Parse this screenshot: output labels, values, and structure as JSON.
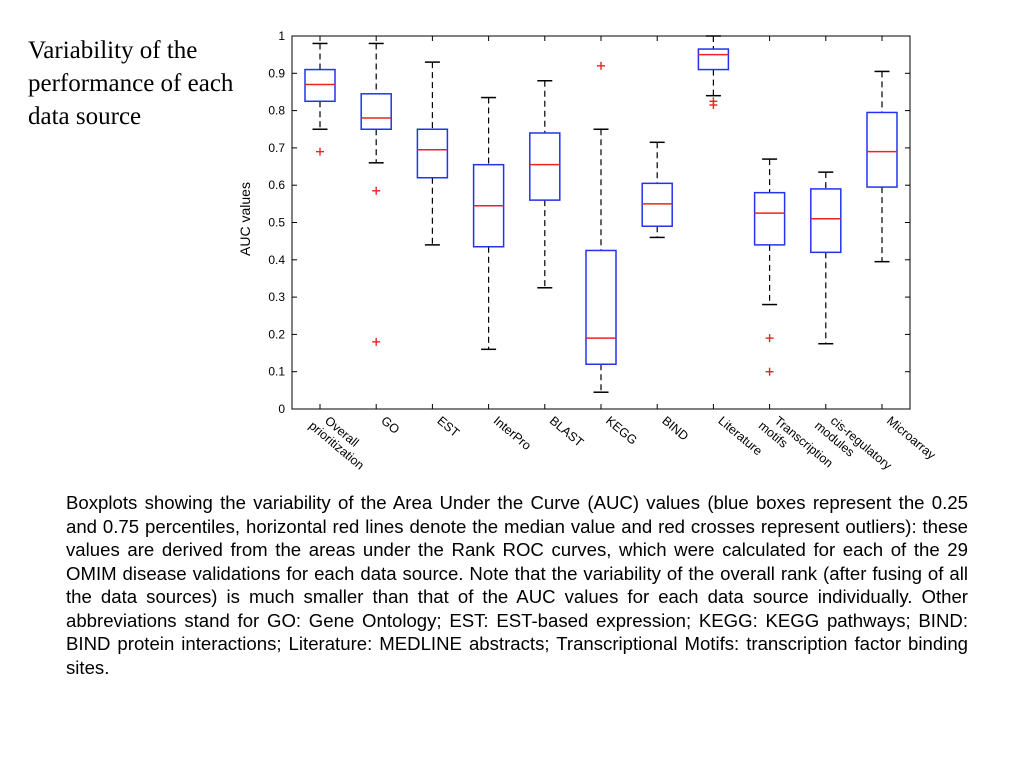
{
  "slide": {
    "title": "Variability of the performance of each data source"
  },
  "caption": "Boxplots showing the variability of the Area Under the Curve (AUC) values (blue boxes represent the 0.25 and 0.75 percentiles, horizontal red lines denote the median value and red crosses represent outliers): these values are derived from the areas under the Rank ROC curves, which were calculated for each of the 29 OMIM disease validations for each data source. Note that the variability of the overall rank (after fusing of all the data sources) is much smaller than that of the AUC values for each data source individually. Other abbreviations stand for GO: Gene Ontology; EST: EST-based expression; KEGG: KEGG pathways; BIND: BIND protein interactions; Literature: MEDLINE abstracts; Transcriptional Motifs: transcription factor binding sites.",
  "chart_data": {
    "type": "boxplot",
    "ylabel": "AUC values",
    "xlabel": "",
    "ylim": [
      0,
      1
    ],
    "yticks": [
      "0",
      "0.1",
      "0.2",
      "0.3",
      "0.4",
      "0.5",
      "0.6",
      "0.7",
      "0.8",
      "0.9",
      "1"
    ],
    "categories": [
      [
        "Overall",
        "prioritization"
      ],
      [
        "GO"
      ],
      [
        "EST"
      ],
      [
        "InterPro"
      ],
      [
        "BLAST"
      ],
      [
        "KEGG"
      ],
      [
        "BIND"
      ],
      [
        "Literature"
      ],
      [
        "Transcription",
        "motifs"
      ],
      [
        "cis-regulatory",
        "modules"
      ],
      [
        "Microarray"
      ]
    ],
    "boxes": [
      {
        "whisker_low": 0.75,
        "q1": 0.825,
        "median": 0.87,
        "q3": 0.91,
        "whisker_high": 0.98,
        "outliers": [
          0.69
        ]
      },
      {
        "whisker_low": 0.66,
        "q1": 0.75,
        "median": 0.78,
        "q3": 0.845,
        "whisker_high": 0.98,
        "outliers": [
          0.585,
          0.18
        ]
      },
      {
        "whisker_low": 0.44,
        "q1": 0.62,
        "median": 0.695,
        "q3": 0.75,
        "whisker_high": 0.93,
        "outliers": []
      },
      {
        "whisker_low": 0.16,
        "q1": 0.435,
        "median": 0.545,
        "q3": 0.655,
        "whisker_high": 0.835,
        "outliers": []
      },
      {
        "whisker_low": 0.325,
        "q1": 0.56,
        "median": 0.655,
        "q3": 0.74,
        "whisker_high": 0.88,
        "outliers": []
      },
      {
        "whisker_low": 0.045,
        "q1": 0.12,
        "median": 0.19,
        "q3": 0.425,
        "whisker_high": 0.75,
        "outliers": [
          0.92
        ]
      },
      {
        "whisker_low": 0.46,
        "q1": 0.49,
        "median": 0.55,
        "q3": 0.605,
        "whisker_high": 0.715,
        "outliers": []
      },
      {
        "whisker_low": 0.84,
        "q1": 0.91,
        "median": 0.95,
        "q3": 0.965,
        "whisker_high": 1.0,
        "outliers": [
          0.825,
          0.815
        ]
      },
      {
        "whisker_low": 0.28,
        "q1": 0.44,
        "median": 0.525,
        "q3": 0.58,
        "whisker_high": 0.67,
        "outliers": [
          0.19,
          0.1
        ]
      },
      {
        "whisker_low": 0.175,
        "q1": 0.42,
        "median": 0.51,
        "q3": 0.59,
        "whisker_high": 0.635,
        "outliers": []
      },
      {
        "whisker_low": 0.395,
        "q1": 0.595,
        "median": 0.69,
        "q3": 0.795,
        "whisker_high": 0.905,
        "outliers": []
      }
    ],
    "colors": {
      "box": "#2233ee",
      "median": "#ee2222",
      "outlier": "#ee2222",
      "whisker": "#000000",
      "axis": "#000000"
    }
  }
}
